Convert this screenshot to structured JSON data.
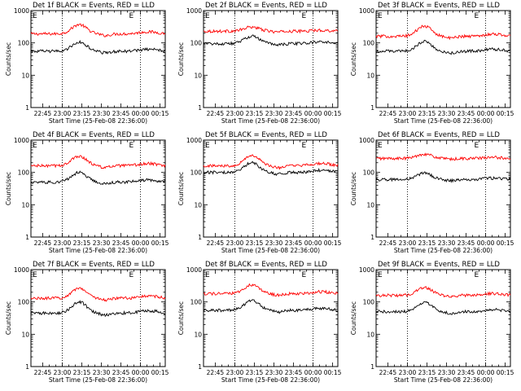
{
  "chart_data": {
    "type": "line",
    "ylabel": "Counts/sec",
    "xlabel": "Start Time (25-Feb-08 22:36:00)",
    "x_tick_labels": [
      "22:45",
      "23:00",
      "23:15",
      "23:30",
      "23:45",
      "00:00",
      "00:15"
    ],
    "x_range_minutes": [
      0,
      103
    ],
    "x_tick_minutes": [
      9,
      24,
      39,
      54,
      69,
      84,
      99
    ],
    "y_scale": "log",
    "ylim": [
      1,
      1000
    ],
    "y_tick_labels": [
      "1",
      "10",
      "100",
      "1000"
    ],
    "vertical_dotted_lines_minutes": [
      24,
      84
    ],
    "corner_marks": [
      "E",
      "E"
    ],
    "corner_mark_minutes": [
      3,
      77
    ],
    "series_colors": {
      "events": "#000000",
      "lld": "#ff0000"
    },
    "panels": [
      {
        "title": "Det 1f BLACK = Events, RED = LLD",
        "events_base": 55,
        "events_peak": 105,
        "lld_base": 190,
        "lld_peak": 370
      },
      {
        "title": "Det 2f BLACK = Events, RED = LLD",
        "events_base": 95,
        "events_peak": 160,
        "lld_base": 230,
        "lld_peak": 310
      },
      {
        "title": "Det 3f BLACK = Events, RED = LLD",
        "events_base": 55,
        "events_peak": 110,
        "lld_base": 160,
        "lld_peak": 330
      },
      {
        "title": "Det 4f BLACK = Events, RED = LLD",
        "events_base": 50,
        "events_peak": 100,
        "lld_base": 160,
        "lld_peak": 320
      },
      {
        "title": "Det 5f BLACK = Events, RED = LLD",
        "events_base": 100,
        "events_peak": 200,
        "lld_base": 160,
        "lld_peak": 340
      },
      {
        "title": "Det 6f BLACK = Events, RED = LLD",
        "events_base": 60,
        "events_peak": 95,
        "lld_base": 270,
        "lld_peak": 370
      },
      {
        "title": "Det 7f BLACK = Events, RED = LLD",
        "events_base": 45,
        "events_peak": 100,
        "lld_base": 130,
        "lld_peak": 270
      },
      {
        "title": "Det 8f BLACK = Events, RED = LLD",
        "events_base": 55,
        "events_peak": 110,
        "lld_base": 180,
        "lld_peak": 340
      },
      {
        "title": "Det 9f BLACK = Events, RED = LLD",
        "events_base": 50,
        "events_peak": 95,
        "lld_base": 160,
        "lld_peak": 280
      }
    ]
  }
}
